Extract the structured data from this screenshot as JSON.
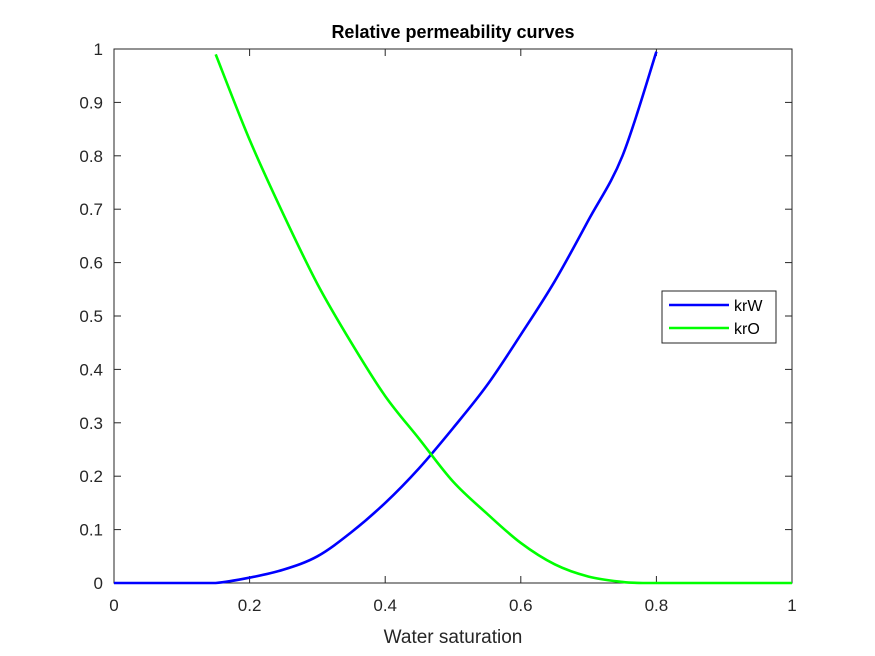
{
  "chart_data": {
    "type": "line",
    "title": "Relative permeability curves",
    "xlabel": "Water saturation",
    "ylabel": "",
    "xlim": [
      0,
      1
    ],
    "ylim": [
      0,
      1
    ],
    "xticks": [
      0,
      0.2,
      0.4,
      0.6,
      0.8,
      1
    ],
    "xtick_labels": [
      "0",
      "0.2",
      "0.4",
      "0.6",
      "0.8",
      "1"
    ],
    "yticks": [
      0,
      0.1,
      0.2,
      0.3,
      0.4,
      0.5,
      0.6,
      0.7,
      0.8,
      0.9,
      1
    ],
    "ytick_labels": [
      "0",
      "0.1",
      "0.2",
      "0.3",
      "0.4",
      "0.5",
      "0.6",
      "0.7",
      "0.8",
      "0.9",
      "1"
    ],
    "grid": false,
    "legend_position": "right",
    "series": [
      {
        "name": "krW",
        "color": "#0000ff",
        "x": [
          0,
          0.05,
          0.1,
          0.15,
          0.2,
          0.25,
          0.3,
          0.35,
          0.4,
          0.45,
          0.5,
          0.55,
          0.6,
          0.65,
          0.7,
          0.75,
          0.8
        ],
        "y": [
          0,
          0,
          0,
          0,
          0.01,
          0.025,
          0.05,
          0.095,
          0.15,
          0.215,
          0.29,
          0.37,
          0.465,
          0.565,
          0.68,
          0.8,
          0.995
        ]
      },
      {
        "name": "krO",
        "color": "#00ff00",
        "x": [
          0.15,
          0.2,
          0.25,
          0.3,
          0.35,
          0.4,
          0.45,
          0.5,
          0.55,
          0.6,
          0.65,
          0.7,
          0.75,
          0.78,
          0.8,
          0.85,
          0.9,
          0.95,
          1
        ],
        "y": [
          0.99,
          0.83,
          0.69,
          0.56,
          0.45,
          0.35,
          0.27,
          0.19,
          0.13,
          0.075,
          0.035,
          0.012,
          0.002,
          0,
          0,
          0,
          0,
          0,
          0
        ]
      }
    ]
  }
}
